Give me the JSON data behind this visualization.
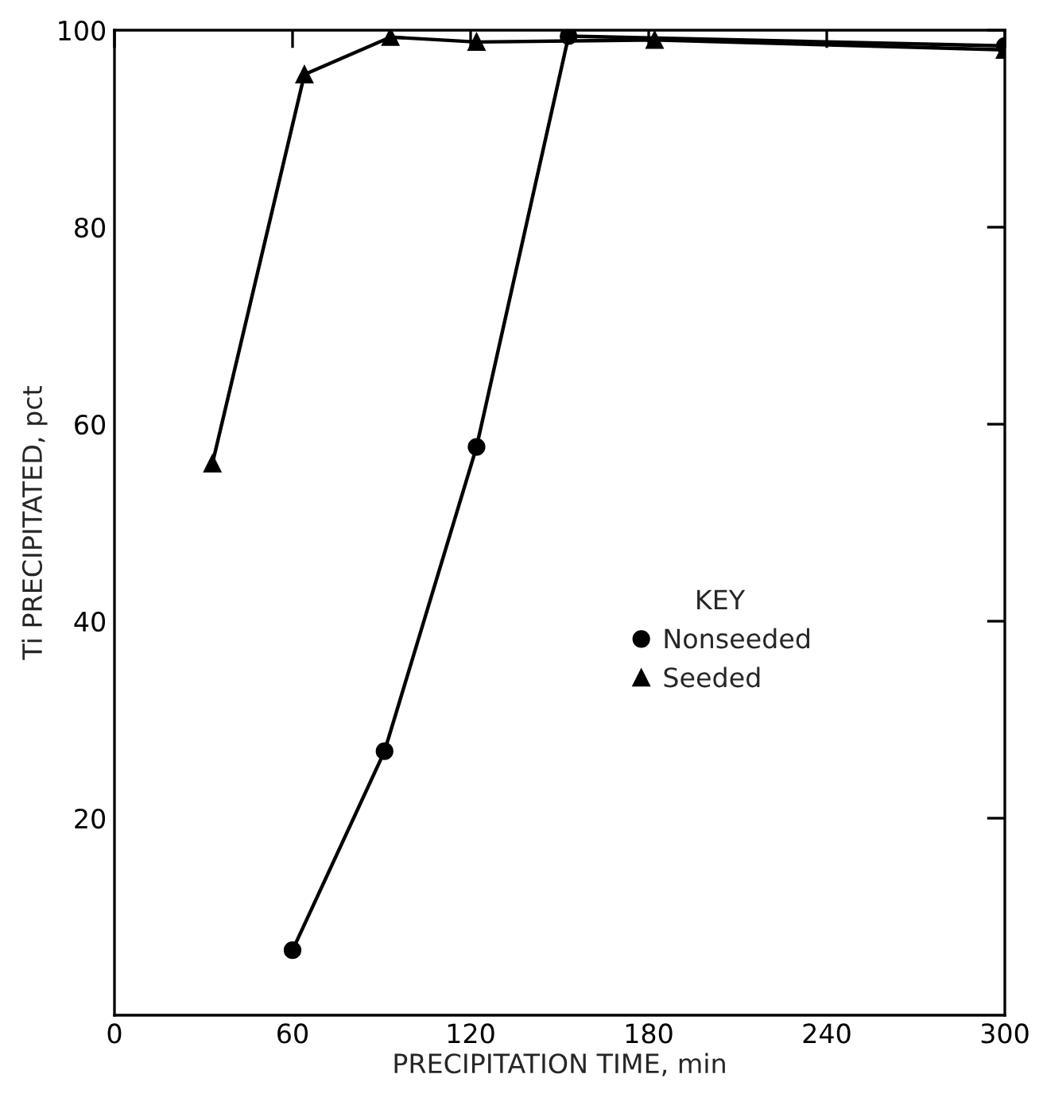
{
  "chart_data": {
    "type": "line",
    "xlabel": "PRECIPITATION TIME, min",
    "ylabel": "Ti PRECIPITATED, pct",
    "legend_title": "KEY",
    "legend": "right",
    "grid": false,
    "xlim": [
      0,
      300
    ],
    "xticks": [
      0,
      60,
      120,
      180,
      240,
      300
    ],
    "ylim": [
      0,
      100
    ],
    "yticks": [
      20,
      40,
      60,
      80,
      100
    ],
    "series": [
      {
        "name": "Nonseeded",
        "color": "#000000",
        "marker": "circle",
        "x": [
          60,
          91,
          122,
          153,
          300
        ],
        "values": [
          6.6,
          26.8,
          57.7,
          99.4,
          98.4
        ]
      },
      {
        "name": "Seeded",
        "color": "#000000",
        "marker": "triangle",
        "x": [
          33,
          64,
          93,
          122,
          182,
          300
        ],
        "values": [
          56,
          95.5,
          99.3,
          98.8,
          99,
          98
        ]
      }
    ]
  }
}
